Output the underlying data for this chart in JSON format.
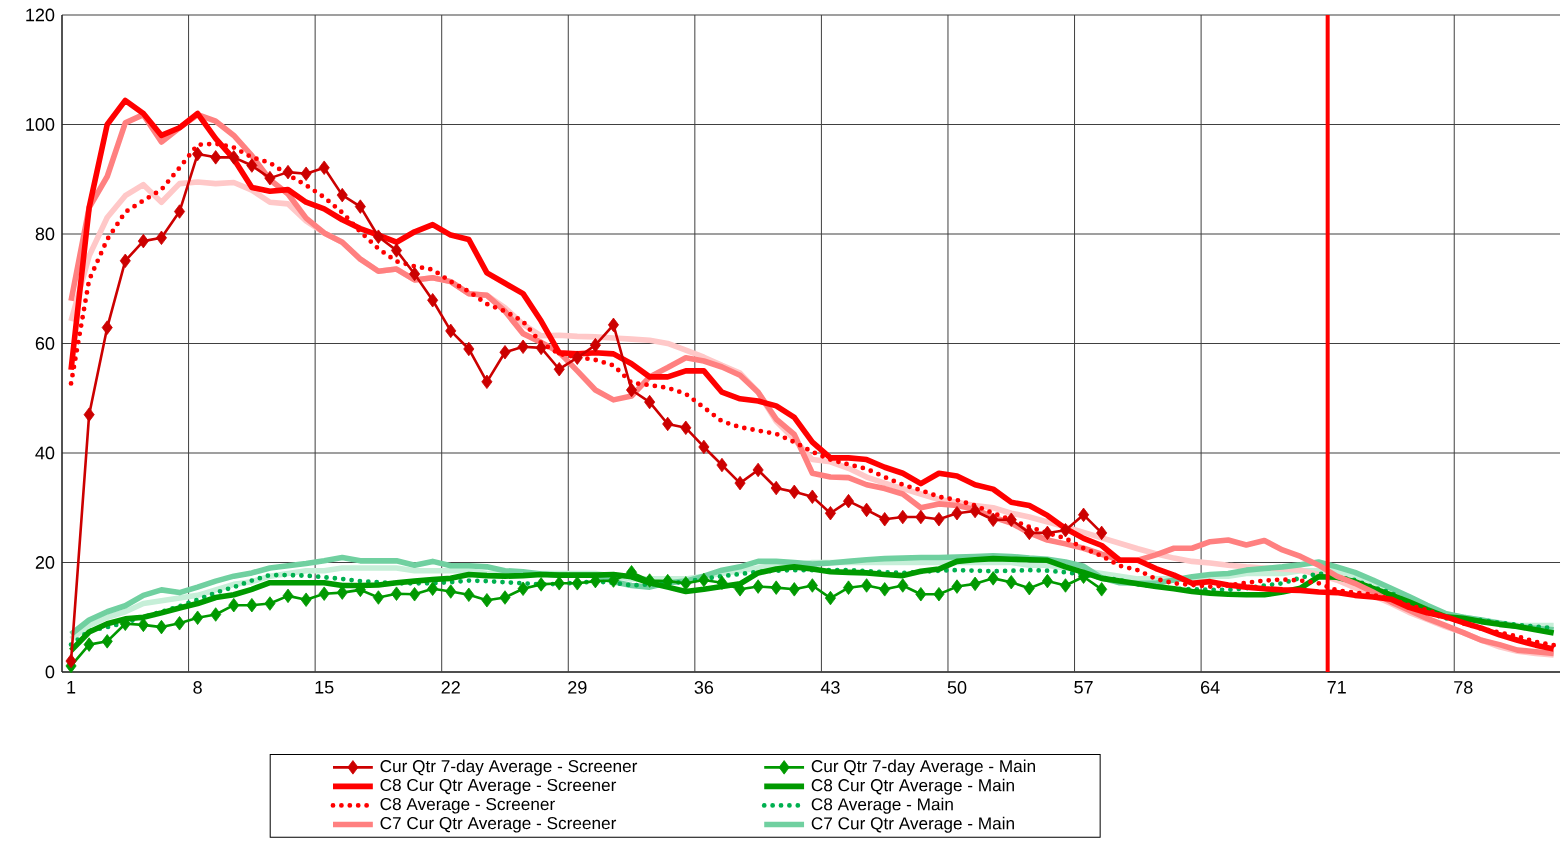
{
  "chart_data": {
    "type": "line",
    "x": [
      1,
      2,
      3,
      4,
      5,
      6,
      7,
      8,
      9,
      10,
      11,
      12,
      13,
      14,
      15,
      16,
      17,
      18,
      19,
      20,
      21,
      22,
      23,
      24,
      25,
      26,
      27,
      28,
      29,
      30,
      31,
      32,
      33,
      34,
      35,
      36,
      37,
      38,
      39,
      40,
      41,
      42,
      43,
      44,
      45,
      46,
      47,
      48,
      49,
      50,
      51,
      52,
      53,
      54,
      55,
      56,
      57,
      58,
      59,
      60,
      61,
      62,
      63,
      64,
      65,
      66,
      67,
      68,
      69,
      70,
      71,
      72,
      73,
      74,
      75,
      76,
      77,
      78,
      79,
      80,
      81,
      82,
      83
    ],
    "xlim": [
      0.5,
      83.35
    ],
    "ylim": [
      0,
      120
    ],
    "xticks": [
      {
        "value": 0.5,
        "label": null
      },
      1,
      {
        "value": 7.5,
        "label": null
      },
      8,
      {
        "value": 14.5,
        "label": null
      },
      15,
      {
        "value": 21.5,
        "label": null
      },
      22,
      {
        "value": 28.5,
        "label": null
      },
      29,
      {
        "value": 35.5,
        "label": null
      },
      36,
      {
        "value": 42.5,
        "label": null
      },
      43,
      {
        "value": 49.5,
        "label": null
      },
      50,
      {
        "value": 56.5,
        "label": null
      },
      57,
      {
        "value": 63.5,
        "label": null
      },
      64,
      {
        "value": 70.5,
        "label": null
      },
      71,
      {
        "value": 77.5,
        "label": null
      },
      78
    ],
    "yticks": [
      0,
      20,
      40,
      60,
      80,
      100,
      120
    ],
    "grid": true,
    "legend": "bottom",
    "ref_lines": [
      {
        "axis": "x",
        "value": 70.5,
        "color": "#ff0000"
      }
    ],
    "series": [
      {
        "name": "Cur Qtr 7-day Average - Screener",
        "color": "#cc0000",
        "marker": "diamond",
        "line_style": "solid",
        "x": [
          1,
          2,
          3,
          4,
          5,
          6,
          7,
          8,
          9,
          10,
          11,
          12,
          13,
          14,
          15,
          16,
          17,
          18,
          19,
          20,
          21,
          22,
          23,
          24,
          25,
          26,
          27,
          28,
          29,
          30,
          31,
          32,
          33,
          34,
          35,
          36,
          37,
          38,
          39,
          40,
          41,
          42,
          43,
          44,
          45,
          46,
          47,
          48,
          49,
          50,
          51,
          52,
          53,
          54,
          55,
          56,
          57,
          58
        ],
        "values": [
          2,
          47,
          62.9,
          75.1,
          78.7,
          79.3,
          84.1,
          94.6,
          94,
          94,
          92.5,
          90.2,
          91.3,
          91,
          92.1,
          87.1,
          85,
          79.5,
          77,
          72.7,
          67.9,
          62.3,
          59,
          53,
          58.4,
          59.4,
          59.2,
          55.3,
          57.4,
          59.7,
          63.4,
          51.5,
          49.3,
          45.3,
          44.6,
          41.1,
          37.8,
          34.5,
          36.9,
          33.6,
          32.9,
          32,
          29,
          31.2,
          29.6,
          27.9,
          28.3,
          28.3,
          27.9,
          29,
          29.4,
          27.8,
          27.8,
          25.4,
          25.4,
          25.9,
          28.7,
          25.4
        ]
      },
      {
        "name": "C8 Cur Qtr Average - Screener",
        "color": "#ff0000",
        "marker": "none",
        "line_style": "solid",
        "values": [
          55.2,
          84.8,
          100,
          104.4,
          102,
          98,
          99.4,
          102,
          97.4,
          93.7,
          88.5,
          87.8,
          88.1,
          85.8,
          84.6,
          82.6,
          81,
          79.8,
          78.5,
          80.4,
          81.7,
          79.8,
          79,
          72.9,
          71,
          69.1,
          64.1,
          58.3,
          58.1,
          58.3,
          58.1,
          56.3,
          53.9,
          53.9,
          55,
          55,
          51.1,
          49.9,
          49.5,
          48.6,
          46.5,
          42,
          39.1,
          39.1,
          38.8,
          37.4,
          36.3,
          34.4,
          36.3,
          35.8,
          34.2,
          33.4,
          31,
          30.4,
          28.6,
          26.2,
          24.4,
          23.1,
          20.4,
          20.4,
          18.9,
          17.7,
          16.2,
          16.5,
          15.9,
          15.5,
          15.2,
          15,
          14.9,
          14.6,
          14.5,
          14,
          13.7,
          13.3,
          11.8,
          10.8,
          10.1,
          9,
          8,
          6.8,
          5.8,
          4.9,
          4.2
        ]
      },
      {
        "name": "C8 Average - Screener",
        "color": "#ff0000",
        "marker": "none",
        "line_style": "dotted",
        "values": [
          52.7,
          71.6,
          79,
          84,
          86.1,
          88.1,
          92.1,
          96.3,
          96.5,
          95.8,
          94,
          93,
          90.8,
          88.9,
          86.7,
          83.9,
          80.4,
          77.3,
          75,
          74.1,
          73.5,
          71.3,
          69.5,
          67.2,
          65.9,
          64,
          60.1,
          58.1,
          57.5,
          57,
          56,
          52.8,
          52.4,
          51.9,
          50.8,
          48.3,
          45.8,
          44.7,
          44.1,
          43.5,
          42,
          40.2,
          38.8,
          37.9,
          37.1,
          35.6,
          34.2,
          33.2,
          32,
          31.4,
          30.4,
          29,
          27.8,
          26.5,
          25.4,
          24.4,
          22.6,
          21.2,
          19.4,
          18.6,
          17,
          16.2,
          15.9,
          15.6,
          15.8,
          16.3,
          16.7,
          16.9,
          16.7,
          16.2,
          14.9,
          14.5,
          14.1,
          13.3,
          12.2,
          11.3,
          10.1,
          8.9,
          7.9,
          7.2,
          6.5,
          5.5,
          4.9
        ]
      },
      {
        "name": "C7 Cur Qtr Average - Screener",
        "color": "#ff8080",
        "marker": "none",
        "line_style": "solid",
        "values": [
          67.8,
          84.8,
          90.5,
          100.3,
          101.8,
          96.8,
          99.4,
          101.8,
          100.6,
          98,
          94.3,
          89.9,
          87.3,
          82.9,
          80.2,
          78.5,
          75.4,
          73.2,
          73.6,
          71.6,
          72,
          71.3,
          69.1,
          68.8,
          65.9,
          61.8,
          60.2,
          58.4,
          55,
          51.5,
          49.7,
          50.4,
          53.9,
          55.6,
          57.4,
          56.8,
          55.7,
          54.2,
          51.1,
          46.2,
          43.4,
          36.3,
          35.6,
          35.5,
          34.2,
          33.5,
          32.5,
          30,
          30.7,
          30.4,
          29.7,
          28.3,
          27.2,
          25.4,
          24.1,
          23.4,
          22.6,
          21.5,
          20.5,
          20.4,
          21.4,
          22.6,
          22.6,
          23.8,
          24.1,
          23.2,
          24,
          22.3,
          21.1,
          19.5,
          17.5,
          16.2,
          14.6,
          12.8,
          11.3,
          9.8,
          8.5,
          7.2,
          5.8,
          5,
          4,
          3.7,
          3.4
        ]
      },
      {
        "name": "Cur Qtr 7-day Average - Main",
        "color": "#009900",
        "marker": "diamond",
        "line_style": "solid",
        "x": [
          1,
          2,
          3,
          4,
          5,
          6,
          7,
          8,
          9,
          10,
          11,
          12,
          13,
          14,
          15,
          16,
          17,
          18,
          19,
          20,
          21,
          22,
          23,
          24,
          25,
          26,
          27,
          28,
          29,
          30,
          31,
          32,
          33,
          34,
          35,
          36,
          37,
          38,
          39,
          40,
          41,
          42,
          43,
          44,
          45,
          46,
          47,
          48,
          49,
          50,
          51,
          52,
          53,
          54,
          55,
          56,
          57,
          58
        ],
        "values": [
          1.1,
          5,
          5.6,
          8.8,
          8.6,
          8.2,
          8.9,
          9.9,
          10.5,
          12.2,
          12.2,
          12.5,
          13.9,
          13.2,
          14.3,
          14.5,
          15,
          13.6,
          14.3,
          14.2,
          15.2,
          14.7,
          14.1,
          13.1,
          13.6,
          15.2,
          16,
          16.2,
          16.2,
          16.6,
          16.7,
          18.2,
          16.7,
          16.6,
          16.2,
          16.8,
          16.3,
          15.1,
          15.6,
          15.4,
          15.1,
          15.8,
          13.5,
          15.4,
          15.8,
          15.1,
          15.8,
          14.2,
          14.2,
          15.6,
          16.1,
          17.1,
          16.4,
          15.3,
          16.6,
          15.8,
          17.4,
          15.1
        ]
      },
      {
        "name": "C8 Cur Qtr Average - Main",
        "color": "#009900",
        "marker": "none",
        "line_style": "solid",
        "values": [
          3.9,
          7.3,
          8.8,
          9.7,
          10,
          10.8,
          11.7,
          12.5,
          13.6,
          14.1,
          15.1,
          16.3,
          16.3,
          16.3,
          16.3,
          15.8,
          15.8,
          15.9,
          16.3,
          16.6,
          16.9,
          17.1,
          17.8,
          17.6,
          17.5,
          17.6,
          17.8,
          17.7,
          17.7,
          17.7,
          17.8,
          17.4,
          16.3,
          15.5,
          14.7,
          15.1,
          15.6,
          16.1,
          18.1,
          18.8,
          19.2,
          18.8,
          18.3,
          18.2,
          18.1,
          17.8,
          17.6,
          18.4,
          18.8,
          20.2,
          20.5,
          20.7,
          20.6,
          20.5,
          20.4,
          19.2,
          18.2,
          17.1,
          16.6,
          16.1,
          15.6,
          15.2,
          14.7,
          14.4,
          14.2,
          14.1,
          14.1,
          14.6,
          15.3,
          17.4,
          17.3,
          16.5,
          15.3,
          14.1,
          12.8,
          11.4,
          10.1,
          9.8,
          9.2,
          8.7,
          8.3,
          7.7,
          7.1
        ]
      },
      {
        "name": "C8 Average - Main",
        "color": "#00b050",
        "marker": "none",
        "line_style": "dotted",
        "values": [
          5,
          7.5,
          8.2,
          9,
          10,
          11,
          12,
          13.2,
          14.5,
          15.5,
          16.7,
          17.7,
          17.7,
          17.6,
          17.3,
          17,
          16.6,
          16.4,
          16.2,
          16.2,
          16.2,
          16.4,
          16.7,
          16.6,
          16.4,
          16.2,
          16,
          16.1,
          16.3,
          16.5,
          16.3,
          15.8,
          16,
          16.2,
          16.5,
          17,
          17.5,
          17.9,
          18.3,
          18.5,
          18.6,
          18.6,
          18.6,
          18.6,
          18.4,
          18.2,
          18.1,
          18.3,
          18.5,
          18.6,
          18.5,
          18.4,
          18.5,
          18.6,
          18.5,
          18.2,
          17.8,
          17.2,
          16.8,
          16,
          15.6,
          15.2,
          15.1,
          15,
          15,
          15.3,
          15.8,
          16.2,
          17.2,
          18,
          17.4,
          16.8,
          15.5,
          14.5,
          12.5,
          11,
          9.8,
          9.6,
          9.5,
          9,
          8.6,
          8.3,
          8
        ]
      },
      {
        "name": "C7 Cur Qtr Average - Main",
        "color": "#70d0a0",
        "marker": "none",
        "line_style": "solid",
        "values": [
          6.9,
          9.5,
          11,
          12.1,
          14,
          15,
          14.5,
          15.5,
          16.6,
          17.5,
          18.1,
          19,
          19.4,
          19.8,
          20.3,
          20.9,
          20.3,
          20.3,
          20.3,
          19.5,
          20.2,
          19.4,
          19.4,
          19.2,
          18.5,
          18.3,
          17.9,
          17.7,
          17.7,
          17.7,
          16.5,
          15.8,
          15.5,
          16.3,
          16.6,
          17.5,
          18.6,
          19.2,
          20.2,
          20.2,
          20,
          19.7,
          19.9,
          20.2,
          20.5,
          20.7,
          20.8,
          20.9,
          20.9,
          21,
          21.1,
          21.2,
          21.1,
          20.8,
          20.6,
          20.1,
          19.3,
          17.2,
          16.3,
          16.2,
          16.2,
          16.8,
          17.4,
          17.8,
          18,
          18.6,
          18.9,
          19.2,
          19.6,
          20.1,
          19.2,
          18.2,
          16.8,
          15.3,
          13.8,
          12.2,
          10.7,
          10,
          9.5,
          8.9,
          8.3,
          8,
          7.7
        ]
      },
      {
        "color": "#ffc8c8",
        "marker": "none",
        "line_style": "solid",
        "values": [
          64.1,
          76,
          83,
          87,
          89,
          85.8,
          89.2,
          89.5,
          89.2,
          89.4,
          88,
          85.8,
          85.5,
          82.4,
          80.2,
          78.5,
          75.4,
          73.2,
          73.6,
          71.6,
          72,
          71.3,
          69.1,
          68.8,
          66.5,
          63.5,
          61.4,
          61.5,
          61.3,
          61.2,
          61,
          60.8,
          60.6,
          60,
          58.8,
          57.5,
          56,
          54.6,
          51.1,
          45.8,
          42.5,
          38.8,
          38.4,
          37.2,
          35.6,
          34.5,
          33.5,
          32.5,
          31.5,
          31,
          30.4,
          30,
          29,
          28.3,
          27.4,
          26.5,
          25.5,
          24.5,
          23.5,
          22.5,
          21.6,
          20.8,
          20.2,
          19.9,
          19.5,
          19.2,
          19,
          18.8,
          18.6,
          17.8,
          16.8,
          15.4,
          14,
          12.5,
          10.9,
          9.6,
          8.3,
          7.2,
          5.8,
          4.6,
          3.8,
          3.4,
          3.1
        ]
      },
      {
        "color": "#c6efd8",
        "marker": "none",
        "line_style": "solid",
        "values": [
          6,
          8.5,
          10,
          11,
          12.5,
          13,
          13.5,
          14,
          15,
          16,
          16.5,
          17.5,
          18,
          18.5,
          18.5,
          19,
          19,
          19,
          19,
          18.5,
          18.5,
          18.5,
          18.5,
          18,
          18,
          18,
          18,
          18,
          18,
          18,
          17.5,
          17,
          17,
          17,
          17,
          17.5,
          18,
          18.5,
          19,
          19.5,
          19.5,
          20,
          20,
          20,
          20,
          20,
          20,
          20,
          20,
          20,
          20,
          20,
          20,
          19.5,
          19.5,
          19,
          18.5,
          18,
          17.5,
          17,
          17,
          17,
          17,
          17.5,
          17.5,
          18,
          18,
          18,
          18.5,
          18.5,
          18.5,
          17.5,
          16.5,
          15,
          13.5,
          12,
          10.5,
          10,
          9.5,
          9,
          8.5,
          8.5,
          8.5
        ]
      }
    ]
  }
}
